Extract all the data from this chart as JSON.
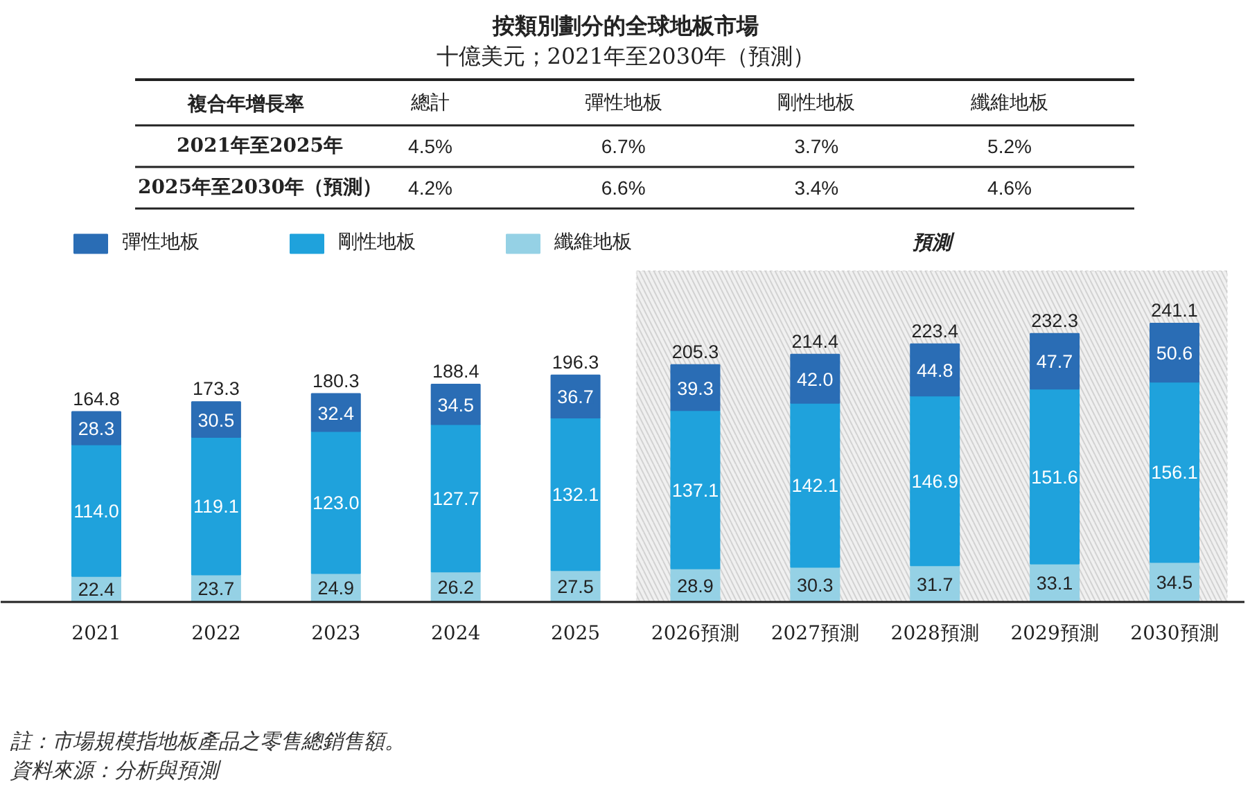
{
  "chart_data": [
    {
      "type": "other",
      "title": "按類別劃分的全球地板市場",
      "subtitle": "十億美元；2021年至2030年（預測）",
      "ylabel": "複合年增長率",
      "categories": [
        "總計",
        "彈性地板",
        "剛性地板",
        "纖維地板"
      ],
      "y_categories": [
        "2021年至2025年",
        "2025年至2030年（預測）"
      ],
      "cell_labels": [
        [
          "4.5%",
          "6.7%",
          "3.7%",
          "5.2%"
        ],
        [
          "4.2%",
          "6.6%",
          "3.4%",
          "4.6%"
        ]
      ]
    },
    {
      "type": "bar",
      "stacked": true,
      "categories": [
        "2021",
        "2022",
        "2023",
        "2024",
        "2025",
        "2026預測",
        "2027預測",
        "2028預測",
        "2029預測",
        "2030預測"
      ],
      "series": [
        {
          "name": "纖維地板",
          "color": "#95d1e5",
          "values": [
            22.4,
            23.7,
            24.9,
            26.2,
            27.5,
            28.9,
            30.3,
            31.7,
            33.1,
            34.5
          ],
          "value_labels": [
            "22.4",
            "23.7",
            "24.9",
            "26.2",
            "27.5",
            "28.9",
            "30.3",
            "31.7",
            "33.1",
            "34.5"
          ]
        },
        {
          "name": "剛性地板",
          "color": "#1fa2dc",
          "values": [
            114.0,
            119.1,
            123.0,
            127.7,
            132.1,
            137.1,
            142.1,
            146.9,
            151.6,
            156.1
          ],
          "value_labels": [
            "114.0",
            "119.1",
            "123.0",
            "127.7",
            "132.1",
            "137.1",
            "142.1",
            "146.9",
            "151.6",
            "156.1"
          ]
        },
        {
          "name": "彈性地板",
          "color": "#2a6db5",
          "values": [
            28.3,
            30.5,
            32.4,
            34.5,
            36.7,
            39.3,
            42.0,
            44.8,
            47.7,
            50.6
          ],
          "value_labels": [
            "28.3",
            "30.5",
            "32.4",
            "34.5",
            "36.7",
            "39.3",
            "42.0",
            "44.8",
            "47.7",
            "50.6"
          ]
        }
      ],
      "totals": [
        "164.8",
        "173.3",
        "180.3",
        "188.4",
        "196.3",
        "205.3",
        "214.4",
        "223.4",
        "232.3",
        "241.1"
      ],
      "bands": [
        {
          "axis": "x",
          "from": "2026預測",
          "to": "2030預測",
          "label": "預測",
          "color": "#f0f0f0"
        }
      ],
      "legend": "top left",
      "tick_labels": "x",
      "annotations": [
        "註：市場規模指地板產品之零售總銷售額。",
        "資料來源：分析與預測"
      ]
    }
  ]
}
